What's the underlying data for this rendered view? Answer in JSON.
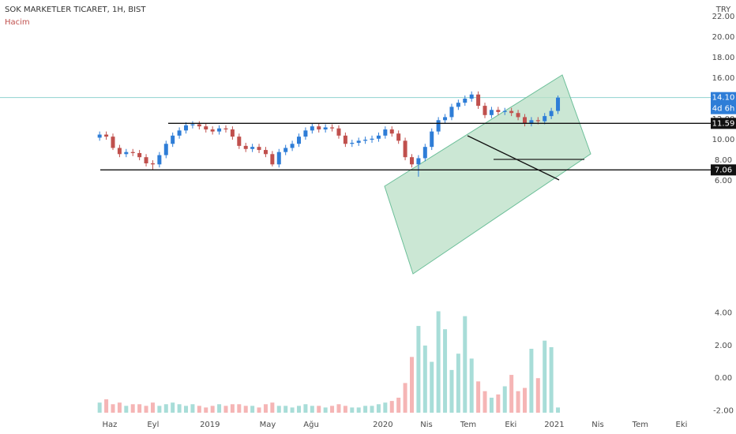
{
  "chart_data": {
    "type": "candlestick",
    "title": "SOK MARKETLER TICARET, 1H, BIST",
    "subtitle": "Hacim",
    "currency": "TRY",
    "countdown": "4d 6h",
    "up_color": "#2e7dd7",
    "down_color": "#c0504d",
    "volume_up_color": "#a8ddd8",
    "volume_down_color": "#f5b5b5",
    "x": [
      0,
      2,
      4,
      6,
      8,
      10,
      12,
      14,
      16,
      18,
      20,
      22,
      24,
      26,
      28,
      30,
      32,
      34,
      36,
      38,
      40,
      42,
      44,
      46,
      48,
      50,
      52,
      54,
      56,
      58,
      60,
      62,
      64,
      66,
      68,
      70,
      72,
      74,
      76,
      78,
      80,
      82,
      84,
      86,
      88,
      90,
      92,
      94,
      96,
      98,
      100,
      102,
      104,
      106,
      108,
      110,
      112,
      114,
      116,
      118,
      120,
      122,
      124,
      126,
      128,
      130,
      132,
      134,
      136,
      138
    ],
    "open": [
      10.2,
      10.5,
      10.3,
      9.2,
      8.6,
      8.8,
      8.7,
      8.3,
      7.7,
      7.6,
      8.5,
      9.6,
      10.4,
      10.9,
      11.4,
      11.5,
      11.3,
      11.0,
      10.8,
      11.1,
      11.0,
      10.3,
      9.4,
      9.1,
      9.3,
      9.0,
      8.6,
      7.6,
      8.8,
      9.2,
      9.6,
      10.3,
      10.9,
      11.3,
      11.0,
      11.2,
      11.1,
      10.4,
      9.6,
      9.7,
      9.9,
      10.0,
      10.1,
      10.4,
      11.0,
      10.6,
      9.9,
      8.3,
      7.6,
      8.2,
      9.3,
      10.8,
      11.9,
      12.2,
      13.2,
      13.6,
      14.0,
      14.4,
      13.3,
      12.4,
      12.9,
      12.7,
      12.8,
      12.6,
      12.2,
      11.6,
      11.9,
      11.8,
      12.3,
      12.8
    ],
    "high": [
      10.8,
      10.8,
      10.6,
      9.5,
      9.1,
      9.1,
      9.0,
      8.6,
      8.0,
      8.8,
      9.9,
      10.7,
      11.2,
      11.7,
      11.8,
      11.8,
      11.6,
      11.3,
      11.4,
      11.4,
      11.3,
      10.6,
      9.7,
      9.6,
      9.6,
      9.3,
      8.9,
      9.1,
      9.5,
      9.9,
      10.6,
      11.2,
      11.6,
      11.6,
      11.5,
      11.5,
      11.4,
      10.7,
      10.0,
      10.2,
      10.3,
      10.4,
      10.7,
      11.3,
      11.3,
      10.9,
      10.2,
      8.6,
      8.5,
      9.6,
      11.1,
      12.2,
      12.5,
      13.5,
      13.9,
      14.3,
      14.7,
      14.7,
      13.6,
      13.2,
      13.2,
      13.1,
      13.1,
      12.9,
      12.5,
      12.2,
      12.2,
      12.6,
      13.1,
      14.3
    ],
    "low": [
      9.9,
      10.0,
      9.0,
      8.3,
      8.3,
      8.4,
      8.0,
      7.4,
      7.1,
      7.3,
      8.2,
      9.3,
      10.1,
      10.6,
      11.1,
      11.0,
      10.7,
      10.5,
      10.5,
      10.7,
      10.0,
      9.1,
      8.8,
      8.8,
      8.7,
      8.3,
      7.4,
      7.3,
      8.5,
      8.9,
      9.3,
      10.0,
      10.6,
      10.7,
      10.7,
      10.8,
      10.1,
      9.3,
      9.3,
      9.4,
      9.6,
      9.7,
      9.8,
      10.1,
      10.3,
      9.6,
      8.0,
      7.3,
      6.4,
      7.9,
      9.0,
      10.5,
      11.6,
      11.9,
      12.9,
      13.3,
      13.7,
      13.0,
      12.1,
      12.1,
      12.4,
      12.4,
      12.3,
      11.9,
      11.3,
      11.3,
      11.5,
      11.5,
      12.0,
      12.5
    ],
    "close": [
      10.5,
      10.3,
      9.2,
      8.6,
      8.8,
      8.7,
      8.3,
      7.7,
      7.6,
      8.5,
      9.6,
      10.4,
      10.9,
      11.4,
      11.5,
      11.3,
      11.0,
      10.8,
      11.1,
      11.0,
      10.3,
      9.4,
      9.1,
      9.3,
      9.0,
      8.6,
      7.6,
      8.8,
      9.2,
      9.6,
      10.3,
      10.9,
      11.3,
      11.0,
      11.2,
      11.1,
      10.4,
      9.6,
      9.7,
      9.9,
      10.0,
      10.1,
      10.4,
      11.0,
      10.6,
      9.9,
      8.3,
      7.6,
      8.2,
      9.3,
      10.8,
      11.9,
      12.2,
      13.2,
      13.6,
      14.0,
      14.4,
      13.3,
      12.4,
      12.9,
      12.7,
      12.8,
      12.6,
      12.2,
      11.6,
      11.9,
      11.8,
      12.3,
      12.8,
      14.1
    ],
    "volume": [
      -1.5,
      -1.3,
      -1.6,
      -1.5,
      -1.7,
      -1.6,
      -1.6,
      -1.7,
      -1.5,
      -1.7,
      -1.6,
      -1.5,
      -1.6,
      -1.7,
      -1.6,
      -1.7,
      -1.8,
      -1.7,
      -1.6,
      -1.7,
      -1.6,
      -1.6,
      -1.7,
      -1.7,
      -1.8,
      -1.6,
      -1.5,
      -1.7,
      -1.7,
      -1.8,
      -1.7,
      -1.6,
      -1.7,
      -1.7,
      -1.8,
      -1.7,
      -1.6,
      -1.7,
      -1.8,
      -1.8,
      -1.7,
      -1.7,
      -1.6,
      -1.5,
      -1.4,
      -1.2,
      -0.3,
      1.3,
      3.2,
      2.0,
      1.0,
      4.1,
      3.0,
      0.5,
      1.5,
      3.8,
      1.2,
      -0.2,
      -0.8,
      -1.2,
      -1.0,
      -0.5,
      0.2,
      -0.8,
      -0.6,
      1.8,
      0.0,
      2.3,
      1.9,
      -1.8
    ],
    "xlim": [
      -30,
      184
    ],
    "xticks": [
      {
        "value": 3.05,
        "label": "Haz"
      },
      {
        "value": 16.1,
        "label": "Eyl"
      },
      {
        "value": 33.2,
        "label": "2019"
      },
      {
        "value": 50.6,
        "label": "May"
      },
      {
        "value": 63.7,
        "label": "Ağu"
      },
      {
        "value": 85.3,
        "label": "2020"
      },
      {
        "value": 98.4,
        "label": "Nis"
      },
      {
        "value": 111,
        "label": "Tem"
      },
      {
        "value": 123.8,
        "label": "Eki"
      },
      {
        "value": 136.9,
        "label": "2021"
      },
      {
        "value": 150,
        "label": "Nis"
      },
      {
        "value": 162.8,
        "label": "Tem"
      },
      {
        "value": 175.2,
        "label": "Eki"
      }
    ],
    "ylim": [
      -4.59,
      23.6
    ],
    "yticks": [
      {
        "value": 6,
        "label": "6.00"
      },
      {
        "value": 8,
        "label": "8.00"
      },
      {
        "value": 10,
        "label": "10.00"
      },
      {
        "value": 12,
        "label": "12.00"
      },
      {
        "value": 14,
        "label": "14.00"
      },
      {
        "value": 16,
        "label": "16.00"
      },
      {
        "value": 18,
        "label": "18.00"
      },
      {
        "value": 20,
        "label": "20.00"
      },
      {
        "value": 22,
        "label": "22.00"
      }
    ],
    "y2lim": [
      -2.12,
      23.0
    ],
    "y2ticks": [
      {
        "value": -2,
        "label": "-2.00"
      },
      {
        "value": 0,
        "label": "0.00"
      },
      {
        "value": 2,
        "label": "2.00"
      },
      {
        "value": 4,
        "label": "4.00"
      }
    ],
    "last_price": {
      "value": 14.1,
      "label": "14.10"
    },
    "levels": [
      {
        "value": 11.59,
        "label": "11.59"
      },
      {
        "value": 7.06,
        "label": "7.06"
      }
    ]
  }
}
